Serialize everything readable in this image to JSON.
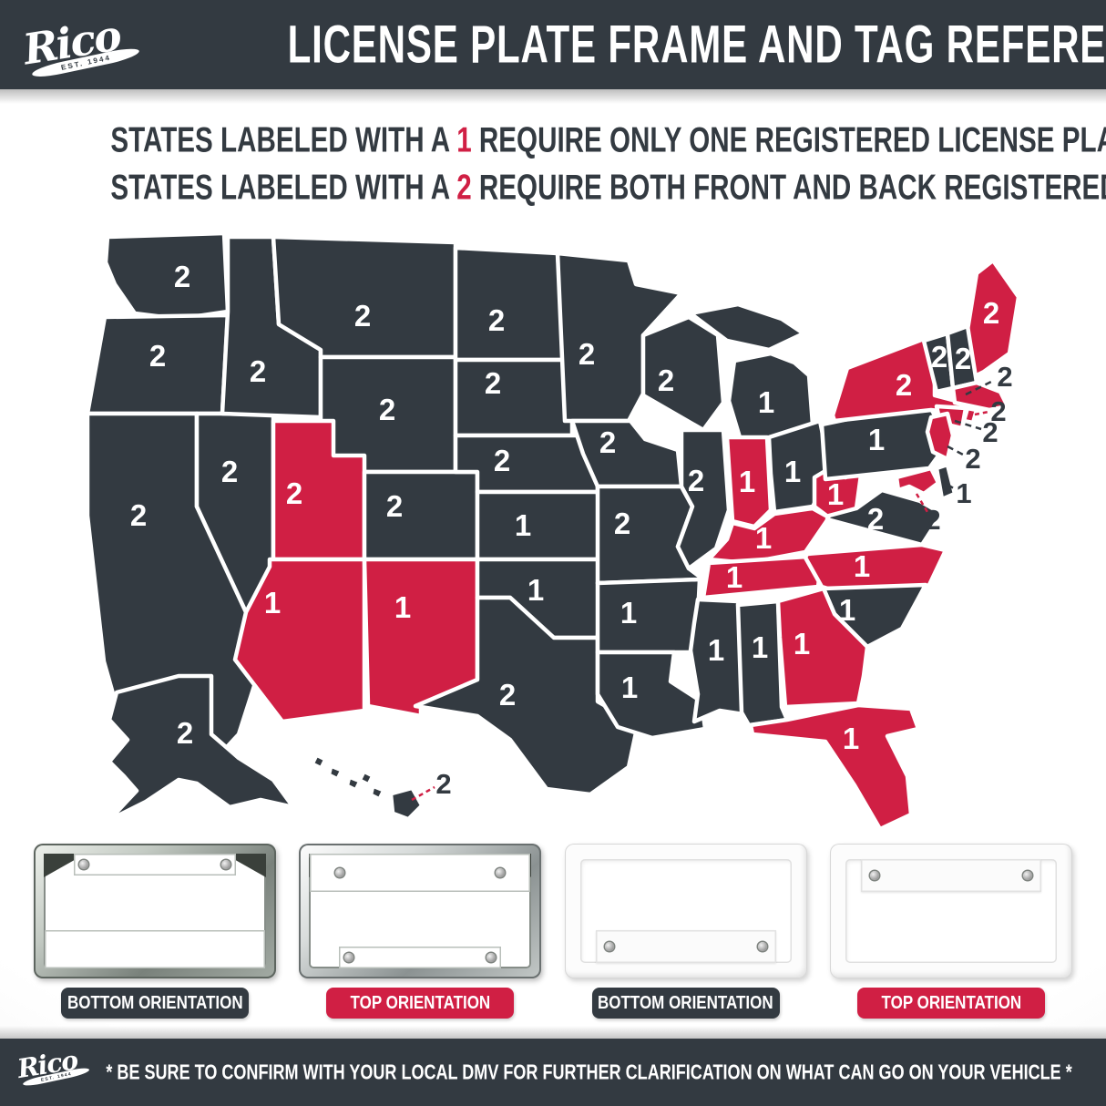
{
  "brand": {
    "name": "Rico",
    "est": "EST. 1944"
  },
  "header": {
    "title": "LICENSE PLATE FRAME AND TAG REFERENCE"
  },
  "legend": {
    "line1": {
      "pre": "STATES LABELED WITH A ",
      "num": "1",
      "post": " REQUIRE ONLY ONE REGISTERED LICENSE PLATE"
    },
    "line2": {
      "pre": "STATES LABELED WITH A ",
      "num": "2",
      "post": " REQUIRE BOTH FRONT AND BACK REGISTERED LICENSE PLATES"
    }
  },
  "colors": {
    "charcoal": "#333a41",
    "red": "#d01f44",
    "white": "#ffffff"
  },
  "map": {
    "states": [
      {
        "id": "WA",
        "name": "Washington",
        "plates": "2",
        "orientation": "bottom"
      },
      {
        "id": "OR",
        "name": "Oregon",
        "plates": "2",
        "orientation": "bottom"
      },
      {
        "id": "CA",
        "name": "California",
        "plates": "2",
        "orientation": "bottom"
      },
      {
        "id": "NV",
        "name": "Nevada",
        "plates": "2",
        "orientation": "bottom"
      },
      {
        "id": "ID",
        "name": "Idaho",
        "plates": "2",
        "orientation": "bottom"
      },
      {
        "id": "MT",
        "name": "Montana",
        "plates": "2",
        "orientation": "bottom"
      },
      {
        "id": "WY",
        "name": "Wyoming",
        "plates": "2",
        "orientation": "bottom"
      },
      {
        "id": "UT",
        "name": "Utah",
        "plates": "2",
        "orientation": "top"
      },
      {
        "id": "CO",
        "name": "Colorado",
        "plates": "2",
        "orientation": "bottom"
      },
      {
        "id": "AZ",
        "name": "Arizona",
        "plates": "1",
        "orientation": "top"
      },
      {
        "id": "NM",
        "name": "New Mexico",
        "plates": "1",
        "orientation": "top"
      },
      {
        "id": "ND",
        "name": "North Dakota",
        "plates": "2",
        "orientation": "bottom"
      },
      {
        "id": "SD",
        "name": "South Dakota",
        "plates": "2",
        "orientation": "bottom"
      },
      {
        "id": "NE",
        "name": "Nebraska",
        "plates": "2",
        "orientation": "bottom"
      },
      {
        "id": "KS",
        "name": "Kansas",
        "plates": "1",
        "orientation": "bottom"
      },
      {
        "id": "OK",
        "name": "Oklahoma",
        "plates": "1",
        "orientation": "bottom"
      },
      {
        "id": "TX",
        "name": "Texas",
        "plates": "2",
        "orientation": "bottom"
      },
      {
        "id": "MN",
        "name": "Minnesota",
        "plates": "2",
        "orientation": "bottom"
      },
      {
        "id": "IA",
        "name": "Iowa",
        "plates": "2",
        "orientation": "bottom"
      },
      {
        "id": "MO",
        "name": "Missouri",
        "plates": "2",
        "orientation": "bottom"
      },
      {
        "id": "AR",
        "name": "Arkansas",
        "plates": "1",
        "orientation": "bottom"
      },
      {
        "id": "LA",
        "name": "Louisiana",
        "plates": "1",
        "orientation": "bottom"
      },
      {
        "id": "WI",
        "name": "Wisconsin",
        "plates": "2",
        "orientation": "bottom"
      },
      {
        "id": "IL",
        "name": "Illinois",
        "plates": "2",
        "orientation": "bottom"
      },
      {
        "id": "MI",
        "name": "Michigan",
        "plates": "1",
        "orientation": "bottom"
      },
      {
        "id": "IN",
        "name": "Indiana",
        "plates": "1",
        "orientation": "top"
      },
      {
        "id": "OH",
        "name": "Ohio",
        "plates": "1",
        "orientation": "bottom"
      },
      {
        "id": "KY",
        "name": "Kentucky",
        "plates": "1",
        "orientation": "top"
      },
      {
        "id": "TN",
        "name": "Tennessee",
        "plates": "1",
        "orientation": "top"
      },
      {
        "id": "MS",
        "name": "Mississippi",
        "plates": "1",
        "orientation": "bottom"
      },
      {
        "id": "AL",
        "name": "Alabama",
        "plates": "1",
        "orientation": "bottom"
      },
      {
        "id": "WV",
        "name": "West Virginia",
        "plates": "1",
        "orientation": "top"
      },
      {
        "id": "VA",
        "name": "Virginia",
        "plates": "2",
        "orientation": "bottom"
      },
      {
        "id": "NC",
        "name": "North Carolina",
        "plates": "1",
        "orientation": "top"
      },
      {
        "id": "SC",
        "name": "South Carolina",
        "plates": "1",
        "orientation": "bottom"
      },
      {
        "id": "GA",
        "name": "Georgia",
        "plates": "1",
        "orientation": "top"
      },
      {
        "id": "FL",
        "name": "Florida",
        "plates": "1",
        "orientation": "top"
      },
      {
        "id": "PA",
        "name": "Pennsylvania",
        "plates": "1",
        "orientation": "bottom"
      },
      {
        "id": "NY",
        "name": "New York",
        "plates": "2",
        "orientation": "top"
      },
      {
        "id": "ME",
        "name": "Maine",
        "plates": "2",
        "orientation": "top"
      },
      {
        "id": "VT",
        "name": "Vermont",
        "plates": "2",
        "orientation": "bottom"
      },
      {
        "id": "NH",
        "name": "New Hampshire",
        "plates": "2",
        "orientation": "bottom"
      },
      {
        "id": "MA",
        "name": "Massachusetts",
        "plates": "2",
        "orientation": "top",
        "callout": true
      },
      {
        "id": "RI",
        "name": "Rhode Island",
        "plates": "2",
        "orientation": "top",
        "callout": true
      },
      {
        "id": "CT",
        "name": "Connecticut",
        "plates": "2",
        "orientation": "top",
        "callout": true
      },
      {
        "id": "NJ",
        "name": "New Jersey",
        "plates": "2",
        "orientation": "top",
        "callout": true
      },
      {
        "id": "DE",
        "name": "Delaware",
        "plates": "1",
        "orientation": "bottom",
        "callout": true
      },
      {
        "id": "MD",
        "name": "Maryland",
        "plates": "2",
        "orientation": "top",
        "callout": true
      },
      {
        "id": "AK",
        "name": "Alaska",
        "plates": "2",
        "orientation": "bottom"
      },
      {
        "id": "HI",
        "name": "Hawaii",
        "plates": "2",
        "orientation": "bottom",
        "callout": true
      }
    ]
  },
  "frames": [
    {
      "label": "BOTTOM ORIENTATION",
      "material": "chrome",
      "banner": "bottom",
      "pill": "dark"
    },
    {
      "label": "TOP ORIENTATION",
      "material": "chrome",
      "banner": "top",
      "pill": "red"
    },
    {
      "label": "BOTTOM ORIENTATION",
      "material": "plastic",
      "banner": "bottom",
      "pill": "dark"
    },
    {
      "label": "TOP ORIENTATION",
      "material": "plastic",
      "banner": "top",
      "pill": "red"
    }
  ],
  "footer": {
    "disclaimer": "* BE SURE TO CONFIRM WITH YOUR LOCAL DMV FOR FURTHER CLARIFICATION ON WHAT CAN GO ON YOUR VEHICLE *"
  }
}
